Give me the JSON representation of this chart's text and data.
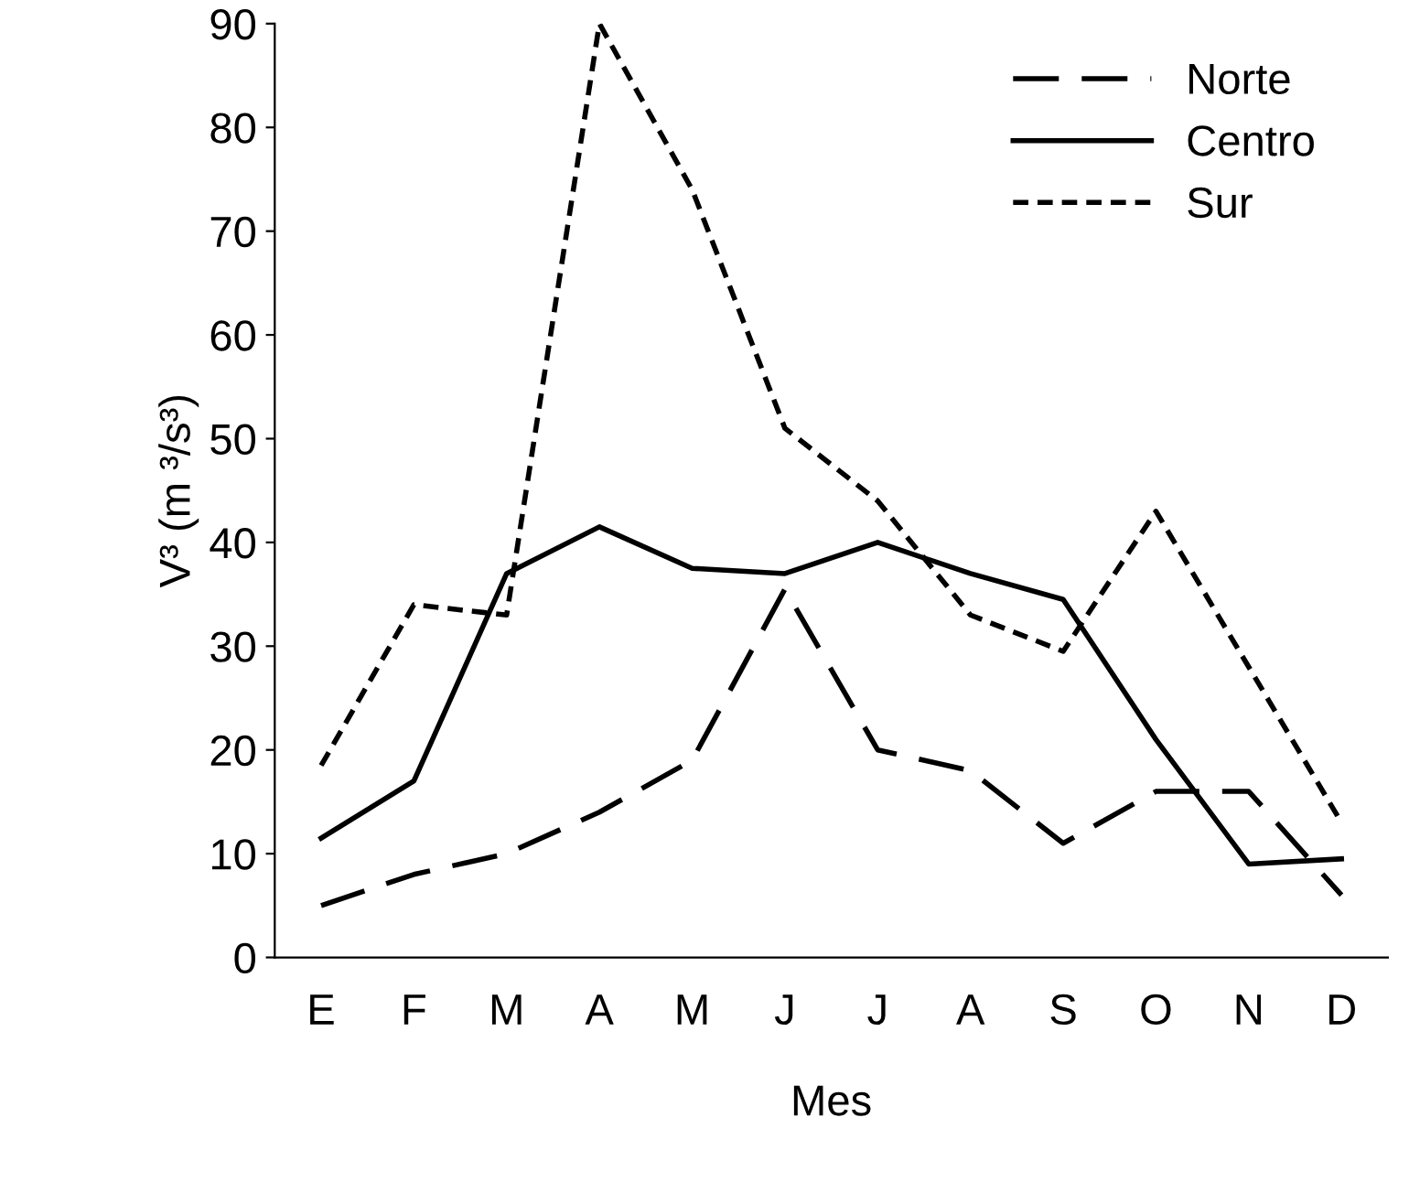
{
  "chart_data": {
    "type": "line",
    "xlabel": "Mes",
    "ylabel": "V³ (m ³/s³)",
    "categories": [
      "E",
      "F",
      "M",
      "A",
      "M",
      "J",
      "J",
      "A",
      "S",
      "O",
      "N",
      "D"
    ],
    "series": [
      {
        "name": "Norte",
        "color": "#000000",
        "line_style": "dashed",
        "values": [
          5,
          8,
          10,
          14,
          19,
          35.5,
          20,
          18,
          11,
          16,
          16,
          6
        ]
      },
      {
        "name": "Centro",
        "color": "#000000",
        "line_style": "solid",
        "values": [
          11.5,
          17,
          37,
          41.5,
          37.5,
          37,
          40,
          37,
          34.5,
          21,
          9,
          9.5
        ]
      },
      {
        "name": "Sur",
        "color": "#000000",
        "line_style": "dotted",
        "values": [
          18.5,
          34,
          33,
          90,
          74,
          51,
          44,
          33,
          29.5,
          43,
          28,
          13
        ]
      }
    ],
    "ylim": [
      0,
      90
    ],
    "yticks": [
      0,
      10,
      20,
      30,
      40,
      50,
      60,
      70,
      80,
      90
    ],
    "grid": false,
    "legend": "top right",
    "marker": "none"
  }
}
